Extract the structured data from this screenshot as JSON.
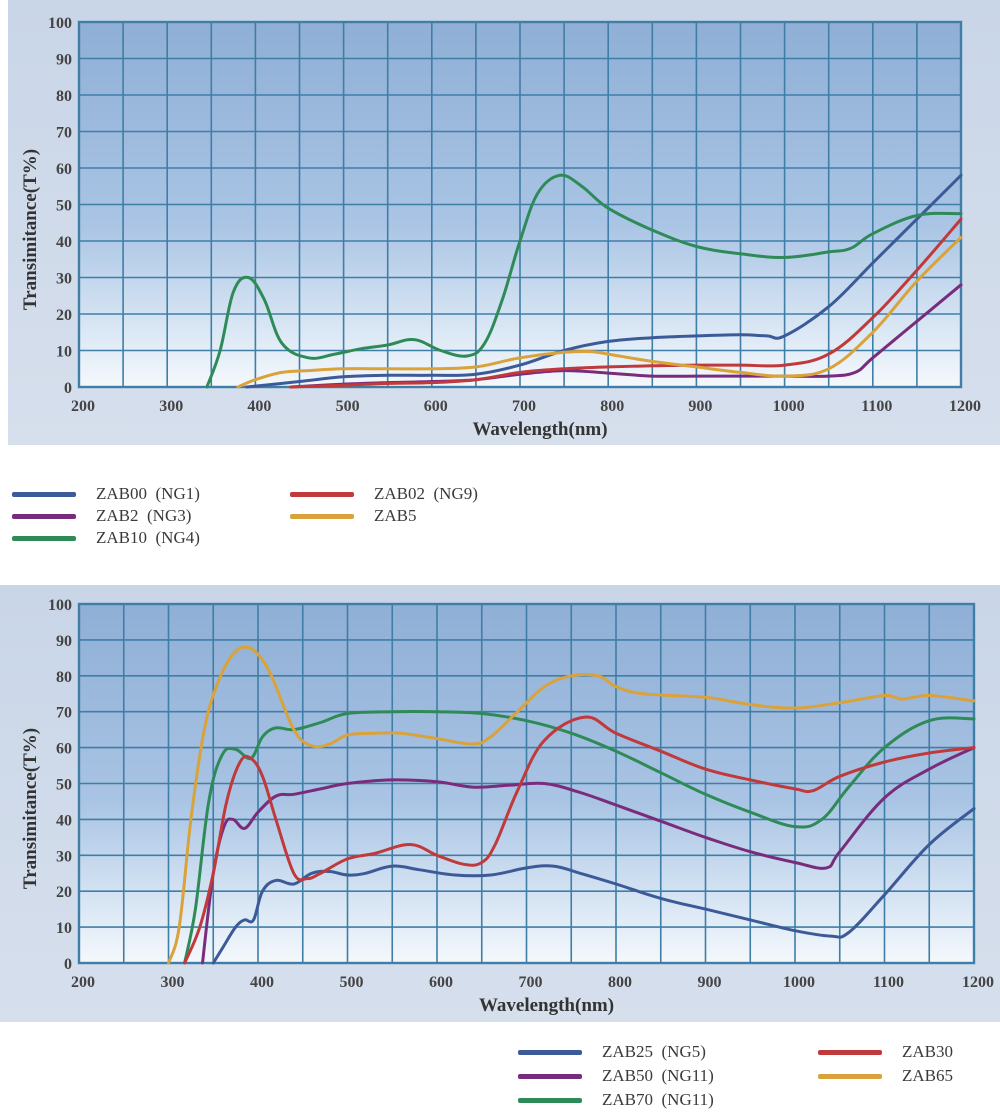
{
  "chart_data": [
    {
      "type": "line",
      "title": "",
      "xlabel": "Wavelength(nm)",
      "ylabel": "Transimitance(T%)",
      "xlim": [
        200,
        1200
      ],
      "ylim": [
        0,
        100
      ],
      "grid": true,
      "x_ticks": [
        "200",
        "300",
        "400",
        "500",
        "600",
        "700",
        "800",
        "900",
        "1000",
        "1100",
        "1200"
      ],
      "y_ticks": [
        "0",
        "10",
        "20",
        "30",
        "40",
        "50",
        "60",
        "70",
        "80",
        "90",
        "100"
      ],
      "legend_position": "below-left",
      "series": [
        {
          "name": "ZAB00  (NG1)",
          "color": "#3d5a98",
          "x": [
            390,
            450,
            500,
            550,
            600,
            650,
            700,
            750,
            800,
            850,
            900,
            950,
            980,
            1000,
            1050,
            1100,
            1150,
            1200
          ],
          "y": [
            0,
            1.5,
            2.8,
            3.2,
            3.2,
            3.5,
            6,
            10,
            12.5,
            13.5,
            14,
            14.3,
            14,
            14,
            22,
            34,
            46,
            58
          ]
        },
        {
          "name": "ZAB2  (NG3)",
          "color": "#7a2c7c",
          "x": [
            440,
            500,
            550,
            600,
            650,
            700,
            750,
            800,
            850,
            900,
            950,
            1000,
            1050,
            1080,
            1100,
            1150,
            1200
          ],
          "y": [
            0,
            0.8,
            1.2,
            1.5,
            2,
            3.5,
            4.5,
            3.8,
            3,
            3,
            3,
            3,
            3,
            4,
            8,
            18,
            28
          ]
        },
        {
          "name": "ZAB10  (NG4)",
          "color": "#2e8b57",
          "x": [
            345,
            360,
            375,
            392,
            410,
            430,
            460,
            490,
            520,
            550,
            580,
            610,
            640,
            660,
            680,
            700,
            720,
            745,
            770,
            800,
            850,
            900,
            950,
            1000,
            1050,
            1075,
            1100,
            1150,
            1200
          ],
          "y": [
            0,
            10,
            26,
            30,
            24,
            12,
            8,
            9,
            10.5,
            11.5,
            13,
            10,
            8.5,
            12,
            24,
            40,
            53,
            58,
            55,
            49,
            43,
            38.5,
            36.5,
            35.5,
            37,
            38,
            42,
            47,
            47.5
          ]
        },
        {
          "name": "ZAB02  (NG9)",
          "color": "#c0393b",
          "x": [
            440,
            500,
            550,
            600,
            650,
            700,
            750,
            800,
            850,
            900,
            950,
            1000,
            1050,
            1100,
            1150,
            1200
          ],
          "y": [
            0,
            0.5,
            1,
            1.2,
            2,
            4,
            5,
            5.5,
            5.8,
            6,
            6,
            6,
            9,
            19,
            32,
            46
          ]
        },
        {
          "name": "ZAB5",
          "color": "#d9a23a",
          "x": [
            380,
            400,
            430,
            460,
            500,
            550,
            600,
            650,
            700,
            750,
            780,
            800,
            850,
            900,
            950,
            1000,
            1050,
            1100,
            1150,
            1200
          ],
          "y": [
            0,
            2,
            4,
            4.5,
            5,
            5,
            5,
            5.5,
            8,
            9.5,
            9.7,
            9,
            7,
            5.5,
            4,
            3,
            5,
            15,
            29,
            41
          ]
        }
      ]
    },
    {
      "type": "line",
      "title": "",
      "xlabel": "Wavelength(nm)",
      "ylabel": "Transimitance(T%)",
      "xlim": [
        200,
        1200
      ],
      "ylim": [
        0,
        100
      ],
      "grid": true,
      "x_ticks": [
        "200",
        "300",
        "400",
        "500",
        "600",
        "700",
        "800",
        "900",
        "1000",
        "1100",
        "1200"
      ],
      "y_ticks": [
        "0",
        "10",
        "20",
        "30",
        "40",
        "50",
        "60",
        "70",
        "80",
        "90",
        "100"
      ],
      "legend_position": "below-right",
      "series": [
        {
          "name": "ZAB25  (NG5)",
          "color": "#3d5a98",
          "x": [
            350,
            360,
            375,
            385,
            395,
            405,
            420,
            440,
            460,
            480,
            500,
            520,
            550,
            580,
            620,
            660,
            700,
            730,
            760,
            800,
            850,
            900,
            950,
            1000,
            1040,
            1060,
            1100,
            1150,
            1200
          ],
          "y": [
            0,
            4,
            10,
            12,
            12,
            20,
            23,
            22,
            25,
            25.5,
            24.5,
            25,
            27,
            26,
            24.5,
            24.5,
            26.5,
            27,
            25,
            22,
            18,
            15,
            12,
            9,
            7.5,
            8.5,
            19,
            33,
            43
          ]
        },
        {
          "name": "ZAB50  (NG11)",
          "color": "#7a2c7c",
          "x": [
            338,
            350,
            362,
            372,
            385,
            400,
            420,
            440,
            470,
            500,
            550,
            600,
            640,
            680,
            720,
            760,
            800,
            850,
            900,
            950,
            1000,
            1035,
            1050,
            1100,
            1150,
            1200
          ],
          "y": [
            0,
            25,
            38,
            40,
            37.5,
            42,
            46.5,
            47,
            48.5,
            50,
            51,
            50.5,
            49,
            49.5,
            50,
            47.5,
            44,
            39.5,
            35,
            31,
            28,
            26.5,
            31,
            46,
            54,
            60
          ]
        },
        {
          "name": "ZAB70  (NG11)",
          "color": "#2e8b57",
          "x": [
            318,
            330,
            345,
            360,
            375,
            392,
            405,
            420,
            440,
            470,
            500,
            550,
            600,
            650,
            700,
            750,
            800,
            850,
            900,
            950,
            1000,
            1030,
            1060,
            1100,
            1150,
            1200
          ],
          "y": [
            0,
            15,
            45,
            58,
            59.5,
            57,
            63,
            65.5,
            65,
            67,
            69.5,
            70,
            70,
            69.5,
            67.5,
            64,
            59,
            53,
            47,
            42,
            38,
            40,
            49,
            60,
            67.5,
            68
          ]
        },
        {
          "name": "ZAB30",
          "color": "#c0393b",
          "x": [
            318,
            335,
            350,
            365,
            380,
            392,
            405,
            420,
            440,
            455,
            470,
            500,
            530,
            570,
            600,
            630,
            650,
            665,
            690,
            720,
            765,
            800,
            850,
            900,
            950,
            1000,
            1020,
            1050,
            1100,
            1150,
            1200
          ],
          "y": [
            0,
            10,
            25,
            45,
            56,
            57,
            52,
            40,
            25,
            23.5,
            25,
            29,
            30.5,
            33,
            30,
            27.5,
            28,
            33,
            48,
            62,
            68.5,
            64,
            59,
            54,
            51,
            48.5,
            48,
            52,
            56,
            58.5,
            60
          ]
        },
        {
          "name": "ZAB65",
          "color": "#d9a23a",
          "x": [
            300,
            312,
            325,
            340,
            355,
            372,
            387,
            400,
            415,
            440,
            460,
            480,
            500,
            530,
            560,
            600,
            640,
            660,
            690,
            720,
            750,
            780,
            800,
            830,
            900,
            950,
            1000,
            1050,
            1100,
            1120,
            1150,
            1200
          ],
          "y": [
            0,
            10,
            40,
            65,
            78,
            86,
            88,
            86,
            80,
            65,
            60.5,
            61,
            63.5,
            64,
            64,
            62.5,
            61,
            63,
            70,
            77,
            80,
            80,
            77,
            75,
            74,
            72,
            71,
            72.5,
            74.5,
            73.5,
            74.5,
            73
          ]
        }
      ]
    }
  ]
}
